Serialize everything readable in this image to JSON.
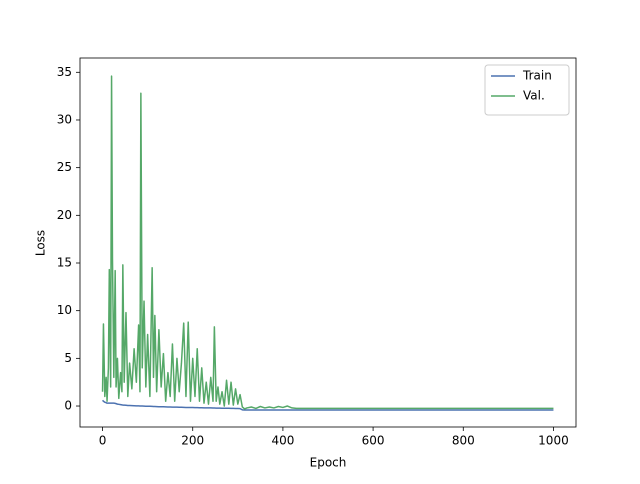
{
  "chart_data": {
    "type": "line",
    "xlabel": "Epoch",
    "ylabel": "Loss",
    "x": [
      0,
      2,
      5,
      8,
      10,
      13,
      15,
      18,
      20,
      22,
      25,
      28,
      30,
      33,
      36,
      40,
      43,
      45,
      48,
      52,
      56,
      60,
      65,
      70,
      75,
      80,
      83,
      85,
      88,
      92,
      96,
      100,
      105,
      110,
      113,
      116,
      120,
      125,
      130,
      135,
      140,
      145,
      150,
      155,
      160,
      165,
      170,
      175,
      180,
      185,
      190,
      195,
      200,
      205,
      210,
      215,
      220,
      225,
      230,
      235,
      240,
      245,
      248,
      252,
      256,
      260,
      265,
      270,
      275,
      280,
      285,
      290,
      295,
      300,
      305,
      310,
      315,
      320,
      330,
      340,
      350,
      360,
      370,
      380,
      390,
      400,
      410,
      420,
      430,
      450,
      500,
      600,
      700,
      800,
      900,
      1000
    ],
    "series": [
      {
        "name": "Train",
        "color": "#4c72b0",
        "values": [
          0.6,
          0.5,
          0.4,
          0.35,
          0.3,
          0.3,
          0.3,
          0.3,
          0.3,
          0.3,
          0.3,
          0.28,
          0.25,
          0.2,
          0.18,
          0.15,
          0.12,
          0.1,
          0.1,
          0.08,
          0.06,
          0.05,
          0.04,
          0.03,
          0.02,
          0.01,
          0,
          0,
          0,
          -0.01,
          -0.02,
          -0.03,
          -0.03,
          -0.04,
          -0.05,
          -0.05,
          -0.06,
          -0.07,
          -0.08,
          -0.08,
          -0.09,
          -0.1,
          -0.1,
          -0.11,
          -0.12,
          -0.12,
          -0.13,
          -0.13,
          -0.14,
          -0.15,
          -0.15,
          -0.16,
          -0.16,
          -0.17,
          -0.17,
          -0.18,
          -0.18,
          -0.19,
          -0.19,
          -0.2,
          -0.2,
          -0.21,
          -0.21,
          -0.22,
          -0.22,
          -0.22,
          -0.23,
          -0.23,
          -0.24,
          -0.24,
          -0.25,
          -0.25,
          -0.26,
          -0.26,
          -0.27,
          -0.4,
          -0.42,
          -0.42,
          -0.42,
          -0.42,
          -0.42,
          -0.42,
          -0.42,
          -0.42,
          -0.42,
          -0.42,
          -0.42,
          -0.42,
          -0.42,
          -0.42,
          -0.42,
          -0.42,
          -0.42,
          -0.42,
          -0.42,
          -0.42
        ]
      },
      {
        "name": "Val.",
        "color": "#55a868",
        "values": [
          1.5,
          8.6,
          1.0,
          3.0,
          0.5,
          4.0,
          14.3,
          2.0,
          34.6,
          15.5,
          3.0,
          14.2,
          2.0,
          5.0,
          0.8,
          3.5,
          1.5,
          14.8,
          2.5,
          9.8,
          1.0,
          4.5,
          1.8,
          6.0,
          2.5,
          8.5,
          1.5,
          32.8,
          4.0,
          11.0,
          2.0,
          7.5,
          1.0,
          14.5,
          3.0,
          9.5,
          1.5,
          8.0,
          2.0,
          5.5,
          0.5,
          3.5,
          1.0,
          6.5,
          0.5,
          5.0,
          1.5,
          4.5,
          8.7,
          1.0,
          8.8,
          0.5,
          5.0,
          1.0,
          6.0,
          0.5,
          4.0,
          0.3,
          2.5,
          0.2,
          3.0,
          0.5,
          8.3,
          0.5,
          2.0,
          0.2,
          1.5,
          0.0,
          2.7,
          0.2,
          2.5,
          0.1,
          1.8,
          0.2,
          1.2,
          -0.1,
          -0.3,
          -0.2,
          -0.1,
          -0.25,
          -0.05,
          -0.2,
          -0.1,
          -0.2,
          -0.05,
          -0.15,
          0,
          -0.2,
          -0.25,
          -0.25,
          -0.25,
          -0.25,
          -0.25,
          -0.25,
          -0.25,
          -0.25
        ]
      }
    ],
    "xlim": [
      -50,
      1050
    ],
    "ylim": [
      -2.2,
      36.5
    ],
    "xticks": [
      0,
      200,
      400,
      600,
      800,
      1000
    ],
    "yticks": [
      0,
      5,
      10,
      15,
      20,
      25,
      30,
      35
    ],
    "legend": "upper right",
    "grid": false
  }
}
